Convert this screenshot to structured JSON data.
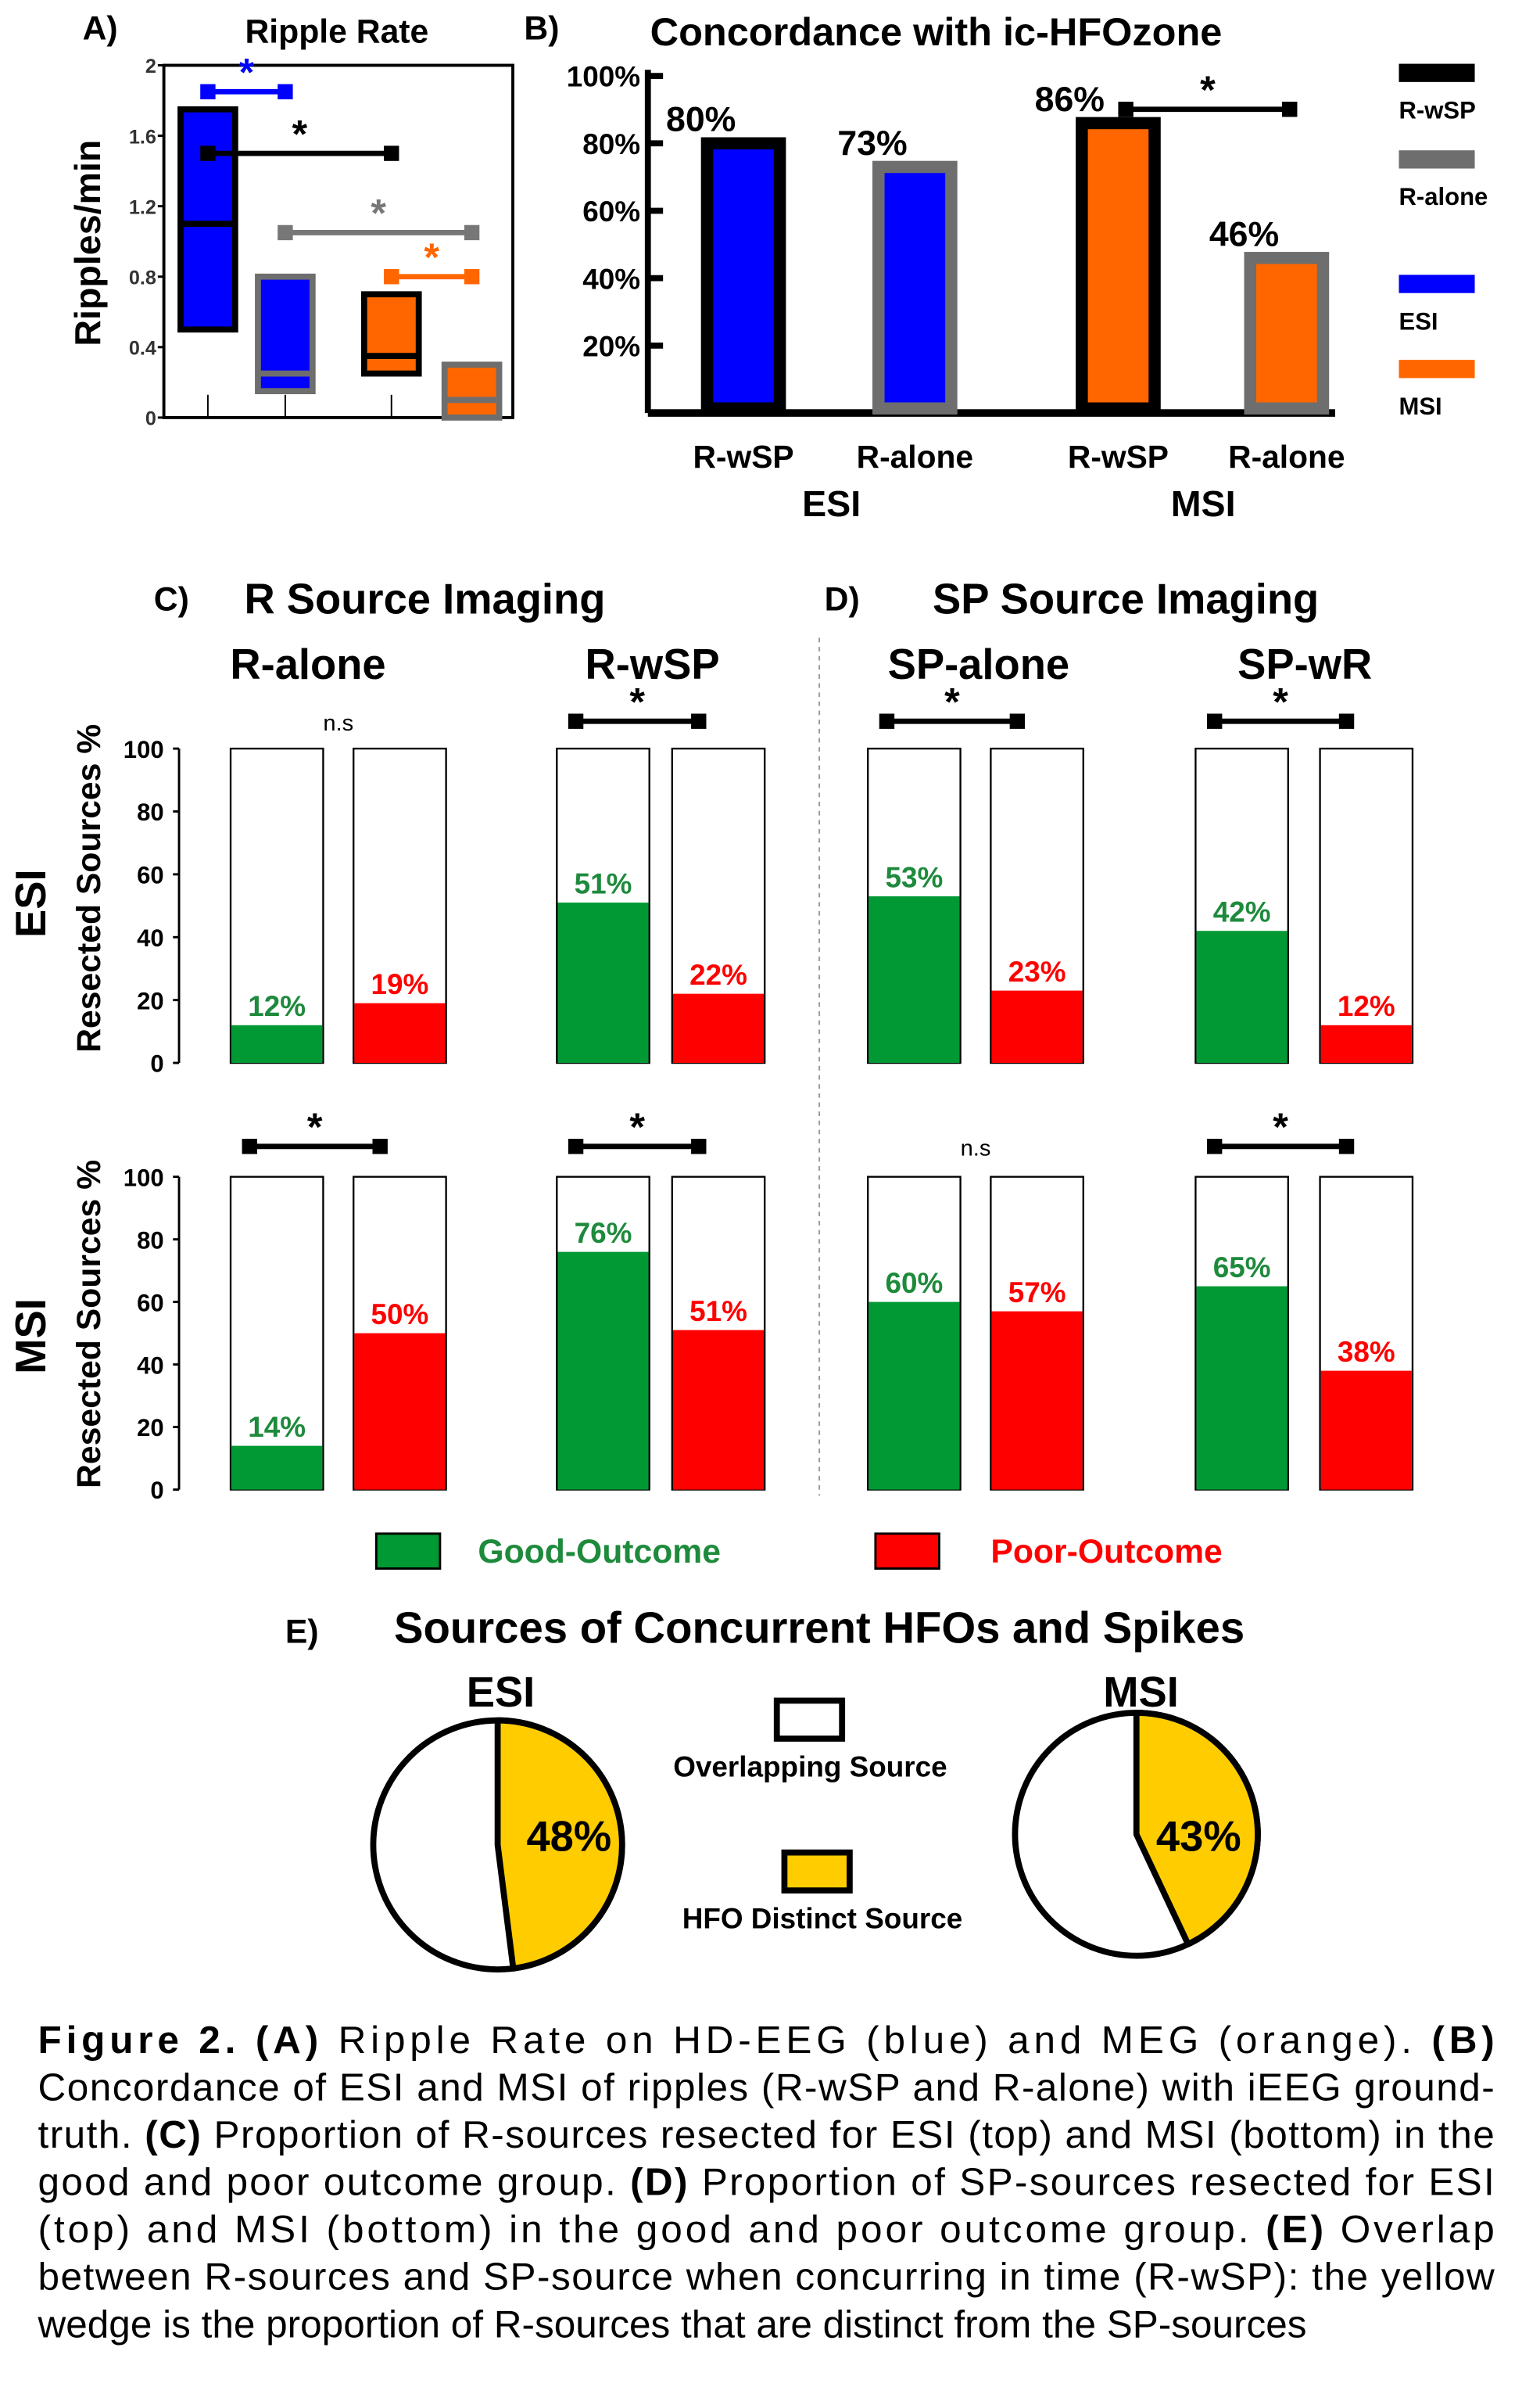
{
  "colors": {
    "esi": "#0000ff",
    "msi": "#ff6600",
    "r_wsp_border": "#000000",
    "r_alone_border": "#6e6e6e",
    "good": "#009933",
    "good_text": "#1e8a3c",
    "poor": "#ff0000",
    "hfo_distinct": "#ffcc00"
  },
  "chart_data": [
    {
      "panel": "A",
      "type": "box",
      "label": "A)",
      "title": "Ripple Rate",
      "ylabel": "Ripples/min",
      "ylim": [
        0,
        2
      ],
      "yticks": [
        0,
        0.4,
        0.8,
        1.2,
        1.6,
        2
      ],
      "ytick_labels": [
        "0",
        "0.4",
        "0.8",
        "1.2",
        "1.6",
        "2"
      ],
      "boxes": [
        {
          "modality": "ESI",
          "type": "R-wSP",
          "q1": 0.5,
          "median": 1.1,
          "q3": 1.75
        },
        {
          "modality": "ESI",
          "type": "R-alone",
          "q1": 0.15,
          "median": 0.25,
          "q3": 0.8
        },
        {
          "modality": "MSI",
          "type": "R-wSP",
          "q1": 0.25,
          "median": 0.35,
          "q3": 0.7
        },
        {
          "modality": "MSI",
          "type": "R-alone",
          "q1": 0.0,
          "median": 0.1,
          "q3": 0.3
        }
      ],
      "significance": [
        {
          "from": 0,
          "to": 1,
          "level": 1.85,
          "color": "#0000ff",
          "mark": "*"
        },
        {
          "from": 0,
          "to": 2,
          "level": 1.5,
          "color": "#000000",
          "mark": "*"
        },
        {
          "from": 1,
          "to": 3,
          "level": 1.05,
          "color": "#777777",
          "mark": "*"
        },
        {
          "from": 2,
          "to": 3,
          "level": 0.8,
          "color": "#ff6600",
          "mark": "*"
        }
      ]
    },
    {
      "panel": "B",
      "type": "bar",
      "label": "B)",
      "title": "Concordance with ic-HFOzone",
      "ylim": [
        0,
        100
      ],
      "ytick_labels": [
        "20%",
        "40%",
        "60%",
        "80%",
        "100%"
      ],
      "yticks": [
        20,
        40,
        60,
        80,
        100
      ],
      "categories": [
        "R-wSP",
        "R-alone",
        "R-wSP",
        "R-alone"
      ],
      "groups": [
        "ESI",
        "MSI"
      ],
      "values": [
        80,
        73,
        86,
        46
      ],
      "value_labels": [
        "80%",
        "73%",
        "86%",
        "46%"
      ],
      "significance": {
        "from": 2,
        "to": 3,
        "mark": "*"
      },
      "legend": [
        "R-wSP",
        "R-alone",
        "ESI",
        "MSI"
      ],
      "legend_placement": "right"
    },
    {
      "panel": "C",
      "type": "bar",
      "label": "C)",
      "title": "R Source Imaging",
      "ylabel": "Resected Sources %",
      "ylim": [
        0,
        100
      ],
      "ytick_labels": [
        "0",
        "20",
        "40",
        "60",
        "80",
        "100"
      ],
      "rows": [
        "ESI",
        "MSI"
      ],
      "groups": [
        {
          "name": "R-alone",
          "ESI": {
            "good": 12,
            "poor": 19,
            "good_label": "12%",
            "poor_label": "19%",
            "sig": "n.s"
          },
          "MSI": {
            "good": 14,
            "poor": 50,
            "good_label": "14%",
            "poor_label": "50%",
            "sig": "*"
          }
        },
        {
          "name": "R-wSP",
          "ESI": {
            "good": 51,
            "poor": 22,
            "good_label": "51%",
            "poor_label": "22%",
            "sig": "*"
          },
          "MSI": {
            "good": 76,
            "poor": 51,
            "good_label": "76%",
            "poor_label": "51%",
            "sig": "*"
          }
        }
      ]
    },
    {
      "panel": "D",
      "type": "bar",
      "label": "D)",
      "title": "SP Source Imaging",
      "ylim": [
        0,
        100
      ],
      "rows": [
        "ESI",
        "MSI"
      ],
      "groups": [
        {
          "name": "SP-alone",
          "ESI": {
            "good": 53,
            "poor": 23,
            "good_label": "53%",
            "poor_label": "23%",
            "sig": "*"
          },
          "MSI": {
            "good": 60,
            "poor": 57,
            "good_label": "60%",
            "poor_label": "57%",
            "sig": "n.s"
          }
        },
        {
          "name": "SP-wR",
          "ESI": {
            "good": 42,
            "poor": 12,
            "good_label": "42%",
            "poor_label": "12%",
            "sig": "*"
          },
          "MSI": {
            "good": 65,
            "poor": 38,
            "good_label": "65%",
            "poor_label": "38%",
            "sig": "*"
          }
        }
      ],
      "legend": [
        "Good-Outcome",
        "Poor-Outcome"
      ],
      "legend_placement": "bottom"
    },
    {
      "panel": "E",
      "type": "pie",
      "label": "E)",
      "title": "Sources of Concurrent HFOs and Spikes",
      "pies": [
        {
          "name": "ESI",
          "hfo_distinct": 48,
          "label": "48%"
        },
        {
          "name": "MSI",
          "hfo_distinct": 43,
          "label": "43%"
        }
      ],
      "legend": [
        "Overlapping Source",
        "HFO Distinct Source"
      ]
    }
  ],
  "caption": [
    [
      {
        "t": "Figure 2. ",
        "b": true
      },
      {
        "t": "(A)",
        "b": true
      },
      {
        "t": " Ripple Rate on HD-EEG (blue) and MEG (orange). ",
        "b": false
      },
      {
        "t": "(B)",
        "b": true
      }
    ],
    [
      {
        "t": "Concordance of ESI and MSI of ripples (R-wSP and R-alone) with iEEG ground-",
        "b": false
      }
    ],
    [
      {
        "t": "truth. ",
        "b": false
      },
      {
        "t": "(C)",
        "b": true
      },
      {
        "t": " Proportion of R-sources resected for ESI (top) and MSI (bottom) in the",
        "b": false
      }
    ],
    [
      {
        "t": "good and poor outcome group. ",
        "b": false
      },
      {
        "t": "(D)",
        "b": true
      },
      {
        "t": " Proportion of SP-sources resected for ESI",
        "b": false
      }
    ],
    [
      {
        "t": "(top) and MSI (bottom) in the good and poor outcome group. ",
        "b": false
      },
      {
        "t": "(E)",
        "b": true
      },
      {
        "t": " Overlap",
        "b": false
      }
    ],
    [
      {
        "t": "between R-sources and SP-source when concurring in time (R-wSP): the yellow",
        "b": false
      }
    ],
    [
      {
        "t": "wedge is the proportion of R-sources that are distinct from the SP-sources",
        "b": false
      }
    ]
  ]
}
